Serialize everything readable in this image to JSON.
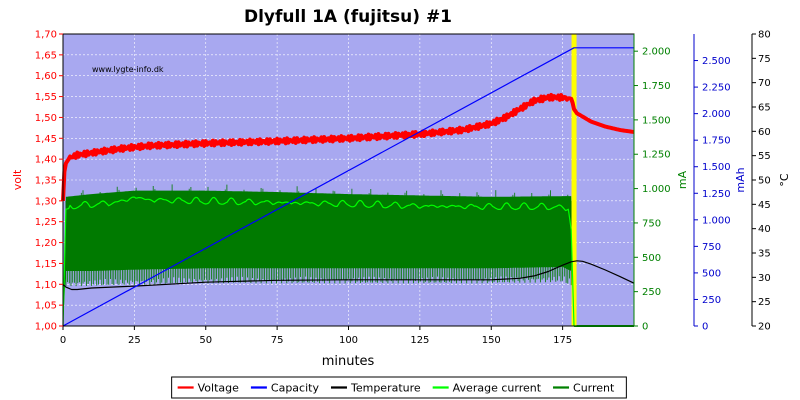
{
  "chart_data": {
    "type": "line",
    "title": "Dlyfull 1A (fujitsu) #1",
    "watermark": "www.lygte-info.dk",
    "xlabel": "minutes",
    "xlim": [
      0,
      200
    ],
    "xticks": [
      "0",
      "25",
      "50",
      "75",
      "100",
      "125",
      "150",
      "175"
    ],
    "grid": true,
    "legend_position": "bottom",
    "axes": {
      "volt": {
        "label": "volt",
        "color": "#ff0000",
        "range": [
          1.0,
          1.7
        ],
        "ticks": [
          "1,00",
          "1,05",
          "1,10",
          "1,15",
          "1,20",
          "1,25",
          "1,30",
          "1,35",
          "1,40",
          "1,45",
          "1,50",
          "1,55",
          "1,60",
          "1,65",
          "1,70"
        ]
      },
      "ma": {
        "label": "mA",
        "color": "#008000",
        "range": [
          0,
          2125
        ],
        "ticks": [
          "0",
          "250",
          "500",
          "750",
          "1.000",
          "1.250",
          "1.500",
          "1.750",
          "2.000"
        ]
      },
      "mah": {
        "label": "mAh",
        "color": "#0000cc",
        "range": [
          0,
          2750
        ],
        "ticks": [
          "0",
          "250",
          "500",
          "750",
          "1.000",
          "1.250",
          "1.500",
          "1.750",
          "2.000",
          "2.250",
          "2.500"
        ]
      },
      "temp": {
        "label": "°C",
        "color": "#000000",
        "range": [
          20,
          80
        ],
        "ticks": [
          "20",
          "25",
          "30",
          "35",
          "40",
          "45",
          "50",
          "55",
          "60",
          "65",
          "70",
          "75",
          "80"
        ]
      }
    },
    "charge_end_marker": {
      "x": 179,
      "color": "#ffff00"
    },
    "series": [
      {
        "name": "Voltage",
        "axis": "volt",
        "color": "#ff0000",
        "noise": 0.006,
        "x": [
          0,
          0.5,
          1,
          2,
          3,
          5,
          10,
          20,
          30,
          50,
          75,
          100,
          125,
          140,
          150,
          155,
          160,
          165,
          170,
          175,
          178,
          178.5,
          179,
          180,
          185,
          190,
          195,
          200
        ],
        "y": [
          1.3,
          1.37,
          1.39,
          1.4,
          1.405,
          1.41,
          1.415,
          1.425,
          1.432,
          1.438,
          1.443,
          1.45,
          1.46,
          1.47,
          1.485,
          1.5,
          1.52,
          1.54,
          1.548,
          1.548,
          1.545,
          1.535,
          1.52,
          1.51,
          1.49,
          1.478,
          1.47,
          1.465
        ]
      },
      {
        "name": "Capacity",
        "axis": "mah",
        "color": "#0000ff",
        "x": [
          0,
          179,
          200
        ],
        "y": [
          0,
          2620,
          2620
        ]
      },
      {
        "name": "Temperature",
        "axis": "temp",
        "color": "#000000",
        "x": [
          0,
          1,
          3,
          5,
          10,
          25,
          50,
          75,
          100,
          125,
          150,
          160,
          165,
          170,
          175,
          178,
          180,
          182,
          185,
          190,
          195,
          200
        ],
        "y": [
          28.5,
          28,
          27.5,
          27.5,
          27.8,
          28.2,
          29,
          29.4,
          29.5,
          29.5,
          29.5,
          29.8,
          30.3,
          31.2,
          32.5,
          33.2,
          33.4,
          33.3,
          32.7,
          31.5,
          30.2,
          28.8
        ]
      },
      {
        "name": "Average current",
        "axis": "ma",
        "color": "#00ff00",
        "noise": 12,
        "x": [
          0,
          1,
          5,
          10,
          20,
          25,
          30,
          50,
          75,
          100,
          125,
          150,
          170,
          177,
          178,
          179,
          180,
          200
        ],
        "y": [
          0,
          850,
          870,
          875,
          895,
          930,
          910,
          900,
          890,
          880,
          865,
          860,
          860,
          850,
          700,
          0,
          0,
          0
        ]
      },
      {
        "name": "Current",
        "axis": "ma",
        "color": "#008000",
        "x": [
          0,
          1,
          10,
          25,
          50,
          75,
          100,
          125,
          150,
          175,
          178,
          179,
          180,
          200
        ],
        "hi": [
          0,
          940,
          960,
          985,
          985,
          975,
          960,
          950,
          940,
          945,
          945,
          0,
          0,
          0
        ],
        "lo": [
          0,
          400,
          400,
          410,
          420,
          420,
          420,
          420,
          420,
          430,
          400,
          0,
          0,
          0
        ]
      }
    ]
  }
}
